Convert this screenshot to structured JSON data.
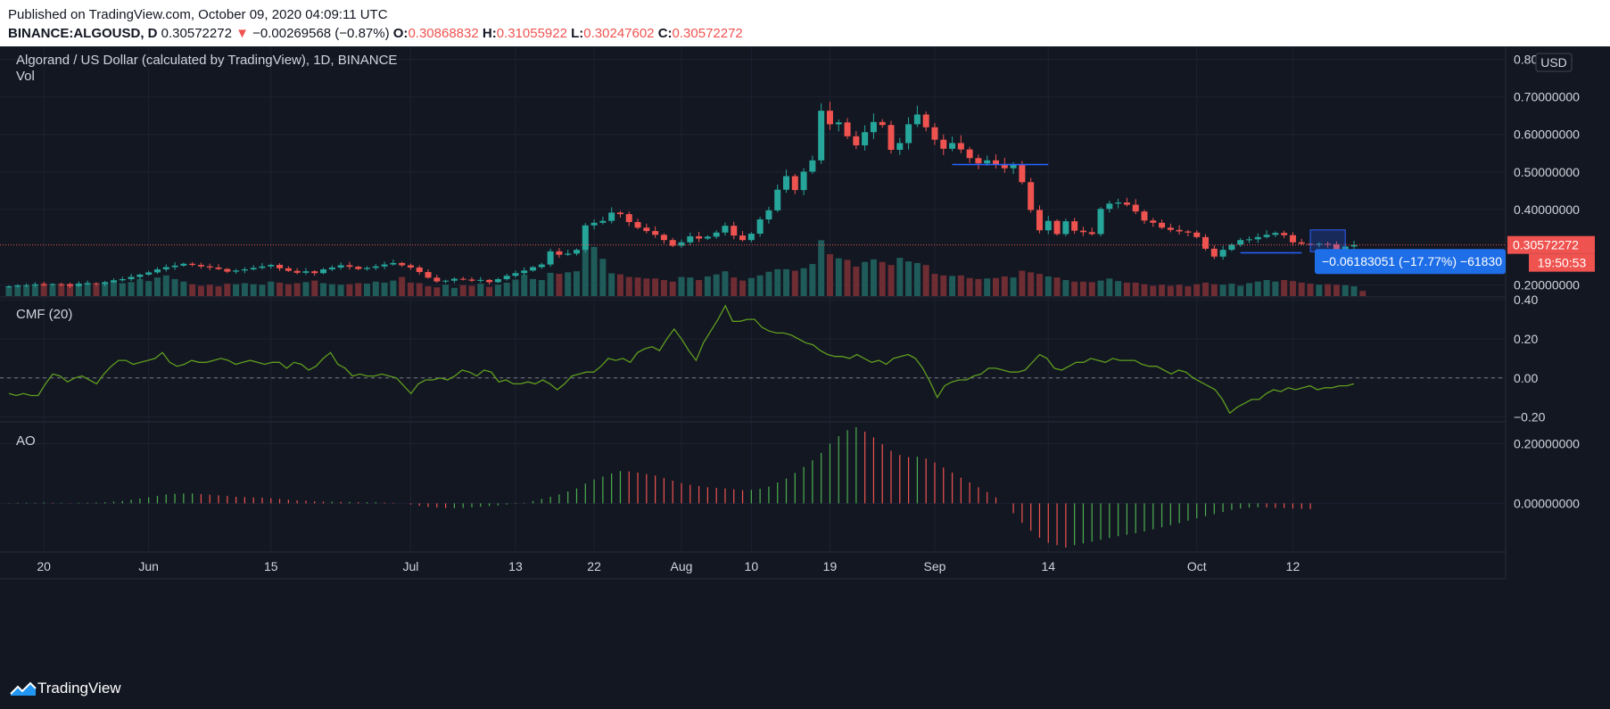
{
  "header": {
    "published": "Published on TradingView.com, October 09, 2020 04:09:11 UTC",
    "symbol": "BINANCE:ALGOUSD, D",
    "last": "0.30572272",
    "change_arrow": "▼",
    "change": "−0.00269568 (−0.87%)",
    "o_label": "O:",
    "o": "0.30868832",
    "h_label": "H:",
    "h": "0.31055922",
    "l_label": "L:",
    "l": "0.30247602",
    "c_label": "C:",
    "c": "0.30572272"
  },
  "colors": {
    "up": "#26a69a",
    "down": "#ef5350",
    "bg": "#131722",
    "grid": "#1e2230",
    "cmf": "#5f9d1e",
    "ao_up": "#4caf50",
    "ao_down": "#ef5350",
    "accent": "#2962ff"
  },
  "footer": {
    "brand": "TradingView",
    "logo_icon": "tradingview-logo-icon"
  },
  "chart_data": [
    {
      "type": "candlestick",
      "title": "Algorand / US Dollar (calculated by TradingView), 1D, BINANCE",
      "volume_label": "Vol",
      "currency_badge": "USD",
      "x_ticks": [
        "20",
        "Jun",
        "15",
        "Jul",
        "13",
        "22",
        "Aug",
        "10",
        "19",
        "Sep",
        "14",
        "Oct",
        "12"
      ],
      "x_tick_days": [
        4,
        16,
        30,
        46,
        58,
        67,
        77,
        85,
        94,
        106,
        119,
        136,
        147
      ],
      "y_ticks": [
        "0.8000000",
        "0.70000000",
        "0.60000000",
        "0.50000000",
        "0.40000000",
        "0.20000000"
      ],
      "y_tick_values": [
        0.8,
        0.7,
        0.6,
        0.5,
        0.4,
        0.2
      ],
      "ylim": [
        0.17,
        0.82
      ],
      "close": [
        0.196,
        0.198,
        0.199,
        0.201,
        0.199,
        0.202,
        0.201,
        0.197,
        0.203,
        0.204,
        0.202,
        0.207,
        0.212,
        0.215,
        0.221,
        0.227,
        0.233,
        0.241,
        0.247,
        0.251,
        0.256,
        0.253,
        0.249,
        0.246,
        0.242,
        0.235,
        0.238,
        0.241,
        0.245,
        0.249,
        0.253,
        0.244,
        0.237,
        0.232,
        0.236,
        0.231,
        0.241,
        0.246,
        0.252,
        0.248,
        0.242,
        0.245,
        0.249,
        0.254,
        0.258,
        0.252,
        0.246,
        0.234,
        0.219,
        0.209,
        0.211,
        0.216,
        0.214,
        0.211,
        0.213,
        0.207,
        0.215,
        0.224,
        0.231,
        0.238,
        0.247,
        0.254,
        0.289,
        0.28,
        0.283,
        0.293,
        0.358,
        0.365,
        0.37,
        0.392,
        0.388,
        0.367,
        0.352,
        0.343,
        0.333,
        0.319,
        0.304,
        0.313,
        0.329,
        0.323,
        0.328,
        0.339,
        0.357,
        0.331,
        0.319,
        0.336,
        0.374,
        0.398,
        0.453,
        0.489,
        0.452,
        0.501,
        0.531,
        0.663,
        0.627,
        0.632,
        0.595,
        0.571,
        0.606,
        0.633,
        0.625,
        0.559,
        0.577,
        0.627,
        0.653,
        0.619,
        0.586,
        0.562,
        0.577,
        0.56,
        0.537,
        0.523,
        0.531,
        0.519,
        0.51,
        0.52,
        0.473,
        0.399,
        0.345,
        0.37,
        0.335,
        0.369,
        0.344,
        0.34,
        0.335,
        0.402,
        0.416,
        0.419,
        0.413,
        0.395,
        0.371,
        0.365,
        0.352,
        0.346,
        0.342,
        0.339,
        0.327,
        0.296,
        0.275,
        0.293,
        0.307,
        0.319,
        0.321,
        0.327,
        0.333,
        0.338,
        0.332,
        0.313,
        0.309,
        0.307,
        0.309,
        0.308,
        0.287,
        0.302,
        0.306
      ],
      "vol": [
        0.18,
        0.21,
        0.19,
        0.23,
        0.25,
        0.2,
        0.22,
        0.24,
        0.2,
        0.26,
        0.22,
        0.23,
        0.3,
        0.25,
        0.27,
        0.33,
        0.29,
        0.36,
        0.4,
        0.33,
        0.28,
        0.23,
        0.2,
        0.22,
        0.19,
        0.24,
        0.23,
        0.25,
        0.23,
        0.22,
        0.28,
        0.26,
        0.23,
        0.25,
        0.27,
        0.3,
        0.25,
        0.23,
        0.22,
        0.23,
        0.25,
        0.24,
        0.28,
        0.26,
        0.3,
        0.37,
        0.26,
        0.25,
        0.19,
        0.17,
        0.22,
        0.16,
        0.21,
        0.2,
        0.24,
        0.18,
        0.22,
        0.26,
        0.32,
        0.41,
        0.33,
        0.31,
        0.45,
        0.43,
        0.46,
        0.48,
        0.95,
        0.95,
        0.72,
        0.44,
        0.42,
        0.37,
        0.36,
        0.34,
        0.34,
        0.31,
        0.28,
        0.37,
        0.36,
        0.31,
        0.38,
        0.42,
        0.48,
        0.36,
        0.3,
        0.35,
        0.4,
        0.47,
        0.52,
        0.52,
        0.49,
        0.54,
        0.62,
        1.08,
        0.81,
        0.73,
        0.7,
        0.57,
        0.66,
        0.71,
        0.66,
        0.6,
        0.74,
        0.67,
        0.64,
        0.6,
        0.43,
        0.4,
        0.39,
        0.4,
        0.35,
        0.33,
        0.34,
        0.35,
        0.38,
        0.36,
        0.49,
        0.46,
        0.43,
        0.38,
        0.36,
        0.31,
        0.28,
        0.28,
        0.27,
        0.3,
        0.34,
        0.29,
        0.26,
        0.26,
        0.23,
        0.2,
        0.22,
        0.2,
        0.22,
        0.19,
        0.23,
        0.26,
        0.23,
        0.22,
        0.24,
        0.2,
        0.25,
        0.28,
        0.31,
        0.28,
        0.31,
        0.29,
        0.26,
        0.24,
        0.22,
        0.23,
        0.22,
        0.21,
        0.19,
        0.1
      ],
      "last_price_label": "0.30572272",
      "countdown_label": "19:50:53",
      "measure_label": "−0.06183051 (−17.77%) −61830"
    },
    {
      "type": "line",
      "name": "CMF (20)",
      "y_ticks": [
        "0.40",
        "0.20",
        "0.00",
        "−0.20"
      ],
      "y_tick_values": [
        0.4,
        0.2,
        0.0,
        -0.2
      ],
      "ylim": [
        -0.22,
        0.41
      ],
      "values": [
        -0.08,
        -0.09,
        -0.08,
        -0.09,
        -0.09,
        -0.03,
        0.02,
        0.01,
        -0.02,
        0.0,
        0.01,
        -0.01,
        -0.03,
        0.02,
        0.06,
        0.09,
        0.09,
        0.07,
        0.08,
        0.09,
        0.1,
        0.13,
        0.08,
        0.06,
        0.07,
        0.09,
        0.08,
        0.08,
        0.09,
        0.1,
        0.09,
        0.07,
        0.08,
        0.09,
        0.08,
        0.07,
        0.08,
        0.08,
        0.05,
        0.08,
        0.07,
        0.04,
        0.06,
        0.1,
        0.13,
        0.07,
        0.05,
        0.01,
        0.02,
        0.01,
        0.01,
        0.02,
        0.01,
        0.0,
        -0.04,
        -0.08,
        -0.03,
        -0.01,
        -0.01,
        0.0,
        -0.01,
        0.01,
        0.04,
        0.03,
        0.01,
        0.04,
        0.03,
        -0.02,
        -0.01,
        -0.03,
        -0.03,
        -0.02,
        -0.03,
        -0.01,
        -0.03,
        -0.06,
        -0.03,
        0.01,
        0.02,
        0.03,
        0.03,
        0.06,
        0.1,
        0.09,
        0.1,
        0.08,
        0.13,
        0.15,
        0.16,
        0.14,
        0.2,
        0.25,
        0.2,
        0.14,
        0.09,
        0.18,
        0.24,
        0.3,
        0.37,
        0.29,
        0.29,
        0.3,
        0.3,
        0.26,
        0.24,
        0.23,
        0.23,
        0.22,
        0.2,
        0.18,
        0.17,
        0.14,
        0.12,
        0.11,
        0.11,
        0.1,
        0.12,
        0.1,
        0.08,
        0.09,
        0.07,
        0.1,
        0.11,
        0.12,
        0.1,
        0.05,
        -0.02,
        -0.1,
        -0.04,
        -0.02,
        -0.01,
        -0.01,
        0.01,
        0.02,
        0.05,
        0.05,
        0.04,
        0.03,
        0.03,
        0.04,
        0.08,
        0.12,
        0.1,
        0.05,
        0.04,
        0.06,
        0.08,
        0.08,
        0.1,
        0.09,
        0.08,
        0.1,
        0.09,
        0.09,
        0.09,
        0.07,
        0.06,
        0.06,
        0.04,
        0.02,
        0.04,
        0.03,
        0.0,
        -0.02,
        -0.04,
        -0.06,
        -0.11,
        -0.18,
        -0.15,
        -0.13,
        -0.11,
        -0.11,
        -0.08,
        -0.06,
        -0.07,
        -0.05,
        -0.06,
        -0.05,
        -0.04,
        -0.06,
        -0.05,
        -0.05,
        -0.04,
        -0.04,
        -0.03
      ],
      "x_index_scale": "values resampled across the same 0–156 day span"
    },
    {
      "type": "bar",
      "name": "AO",
      "y_ticks": [
        "0.20000000",
        "0.00000000"
      ],
      "y_tick_values": [
        0.2,
        0.0
      ],
      "ylim": [
        -0.16,
        0.27
      ],
      "values": [
        0.001,
        0.002,
        0.002,
        0.002,
        0.003,
        0.002,
        0.002,
        0.001,
        0.002,
        0.002,
        0.003,
        0.004,
        0.006,
        0.008,
        0.012,
        0.016,
        0.02,
        0.025,
        0.03,
        0.032,
        0.033,
        0.033,
        0.031,
        0.029,
        0.027,
        0.025,
        0.022,
        0.021,
        0.02,
        0.019,
        0.017,
        0.015,
        0.012,
        0.01,
        0.009,
        0.007,
        0.006,
        0.006,
        0.005,
        0.005,
        0.004,
        0.004,
        0.004,
        0.003,
        0.002,
        0.0,
        -0.004,
        -0.008,
        -0.012,
        -0.014,
        -0.016,
        -0.016,
        -0.015,
        -0.013,
        -0.011,
        -0.009,
        -0.007,
        -0.004,
        -0.002,
        0.002,
        0.008,
        0.015,
        0.022,
        0.03,
        0.04,
        0.05,
        0.066,
        0.08,
        0.09,
        0.1,
        0.108,
        0.107,
        0.103,
        0.098,
        0.093,
        0.085,
        0.076,
        0.068,
        0.062,
        0.058,
        0.054,
        0.052,
        0.05,
        0.047,
        0.044,
        0.045,
        0.049,
        0.056,
        0.07,
        0.083,
        0.102,
        0.122,
        0.144,
        0.169,
        0.2,
        0.225,
        0.245,
        0.255,
        0.24,
        0.221,
        0.198,
        0.176,
        0.162,
        0.155,
        0.156,
        0.15,
        0.137,
        0.12,
        0.103,
        0.086,
        0.07,
        0.054,
        0.038,
        0.02,
        0.0,
        -0.033,
        -0.065,
        -0.092,
        -0.115,
        -0.132,
        -0.14,
        -0.148,
        -0.14,
        -0.134,
        -0.128,
        -0.122,
        -0.116,
        -0.11,
        -0.105,
        -0.1,
        -0.094,
        -0.087,
        -0.08,
        -0.073,
        -0.066,
        -0.058,
        -0.05,
        -0.043,
        -0.036,
        -0.029,
        -0.022,
        -0.017,
        -0.014,
        -0.013,
        -0.014,
        -0.015,
        -0.016,
        -0.017,
        -0.018,
        -0.019
      ]
    }
  ]
}
